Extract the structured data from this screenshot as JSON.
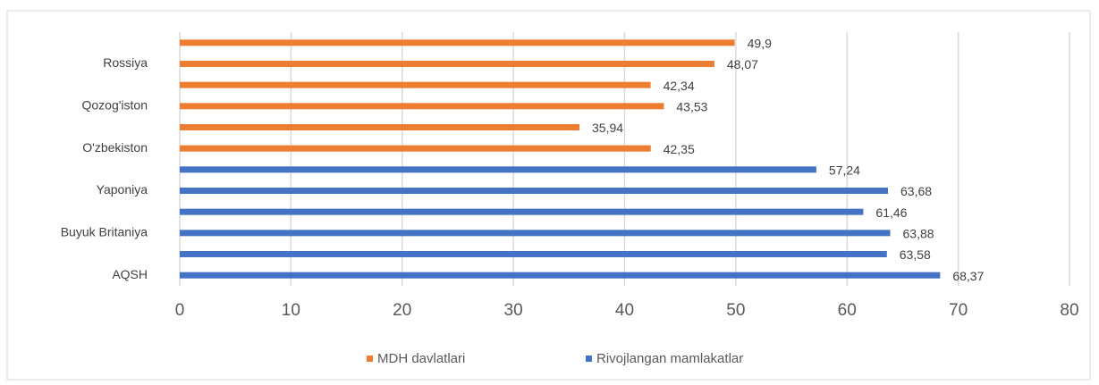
{
  "chart_data": {
    "type": "bar",
    "orientation": "horizontal",
    "categories": [
      null,
      "Rossiya",
      null,
      "Qozog'iston",
      null,
      "O'zbekiston",
      null,
      "Yaponiya",
      null,
      "Buyuk Britaniya",
      null,
      "AQSH"
    ],
    "series": [
      {
        "name": "MDH davlatlari",
        "color": "#ed7d31",
        "values": [
          49.9,
          48.07,
          42.34,
          43.53,
          35.94,
          42.35,
          null,
          null,
          null,
          null,
          null,
          null
        ],
        "value_labels": [
          "49,9",
          "48,07",
          "42,34",
          "43,53",
          "35,94",
          "42,35",
          null,
          null,
          null,
          null,
          null,
          null
        ]
      },
      {
        "name": "Rivojlangan mamlakatlar",
        "color": "#4472c4",
        "values": [
          null,
          null,
          null,
          null,
          null,
          null,
          57.24,
          63.68,
          61.46,
          63.88,
          63.58,
          68.37
        ],
        "value_labels": [
          null,
          null,
          null,
          null,
          null,
          null,
          "57,24",
          "63,68",
          "61,46",
          "63,88",
          "63,58",
          "68,37"
        ]
      }
    ],
    "xlim": [
      0,
      80
    ],
    "xticks": [
      0,
      10,
      20,
      30,
      40,
      50,
      60,
      70,
      80
    ],
    "grid": true,
    "legend": "bottom"
  }
}
